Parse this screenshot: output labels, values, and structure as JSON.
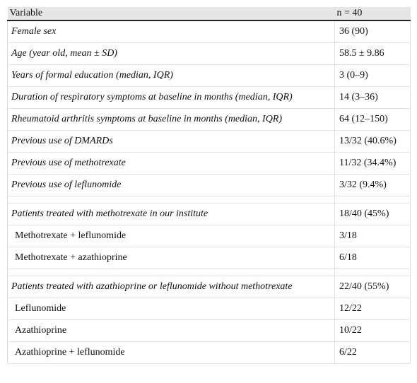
{
  "table": {
    "header": [
      "Variable",
      "n = 40"
    ],
    "sections": [
      {
        "rows": [
          {
            "label": "Female sex",
            "value": "36 (90)",
            "italic": true
          },
          {
            "label": "Age (year old, mean ± SD)",
            "value": "58.5 ± 9.86",
            "italic": true
          },
          {
            "label": "Years of formal education (median, IQR)",
            "value": "3 (0–9)",
            "italic": true
          },
          {
            "label": "Duration of respiratory symptoms at baseline in months (median, IQR)",
            "value": "14 (3–36)",
            "italic": true
          },
          {
            "label": "Rheumatoid arthritis symptoms at baseline in months (median, IQR)",
            "value": "64 (12–150)",
            "italic": true
          },
          {
            "label": "Previous use of DMARDs",
            "value": "13/32 (40.6%)",
            "italic": true
          },
          {
            "label": "Previous use of methotrexate",
            "value": "11/32 (34.4%)",
            "italic": true
          },
          {
            "label": "Previous use of leflunomide",
            "value": "3/32 (9.4%)",
            "italic": true
          }
        ]
      },
      {
        "rows": [
          {
            "label": "Patients treated with methotrexate in our institute",
            "value": "18/40 (45%)",
            "italic": true
          },
          {
            "label": "Methotrexate + leflunomide",
            "value": "3/18",
            "italic": false
          },
          {
            "label": "Methotrexate + azathioprine",
            "value": "6/18",
            "italic": false
          }
        ]
      },
      {
        "rows": [
          {
            "label": "Patients treated with azathioprine or leflunomide without methotrexate",
            "value": "22/40 (55%)",
            "italic": true
          },
          {
            "label": "Leflunomide",
            "value": "12/22",
            "italic": false
          },
          {
            "label": "Azathioprine",
            "value": "10/22",
            "italic": false
          },
          {
            "label": "Azathioprine + leflunomide",
            "value": "6/22",
            "italic": false
          }
        ]
      }
    ]
  }
}
